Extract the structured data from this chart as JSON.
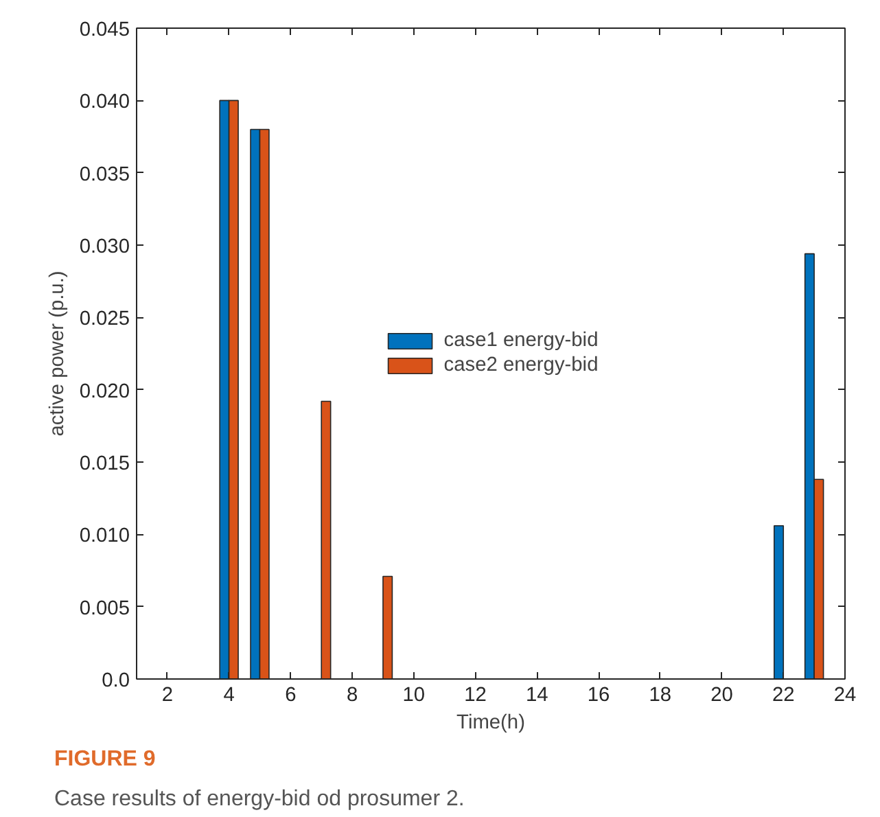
{
  "chart_data": {
    "type": "bar",
    "xlabel": "Time(h)",
    "ylabel": "active power (p.u.)",
    "x": [
      4,
      5,
      7,
      9,
      22,
      23
    ],
    "series": [
      {
        "name": "case1 energy-bid",
        "color": "#0072bd",
        "values": [
          0.04,
          0.038,
          null,
          null,
          0.0106,
          0.0294
        ]
      },
      {
        "name": "case2 energy-bid",
        "color": "#d95319",
        "values": [
          0.04,
          0.038,
          0.0192,
          0.0071,
          null,
          0.0138
        ]
      }
    ],
    "xlim": [
      1,
      24
    ],
    "xticks": [
      2,
      4,
      6,
      8,
      10,
      12,
      14,
      16,
      18,
      20,
      22,
      24
    ],
    "ylim": [
      0,
      0.045
    ],
    "yticks": [
      {
        "value": 0,
        "label": "0.0"
      },
      0.005,
      {
        "value": 0.01,
        "label": "0.010"
      },
      0.015,
      {
        "value": 0.02,
        "label": "0.020"
      },
      0.025,
      {
        "value": 0.03,
        "label": "0.030"
      },
      0.035,
      {
        "value": 0.04,
        "label": "0.040"
      },
      0.045
    ],
    "grid": false,
    "legend": "center",
    "annotations": [
      "FIGURE 9",
      "Case results of energy-bid od prosumer 2."
    ]
  }
}
